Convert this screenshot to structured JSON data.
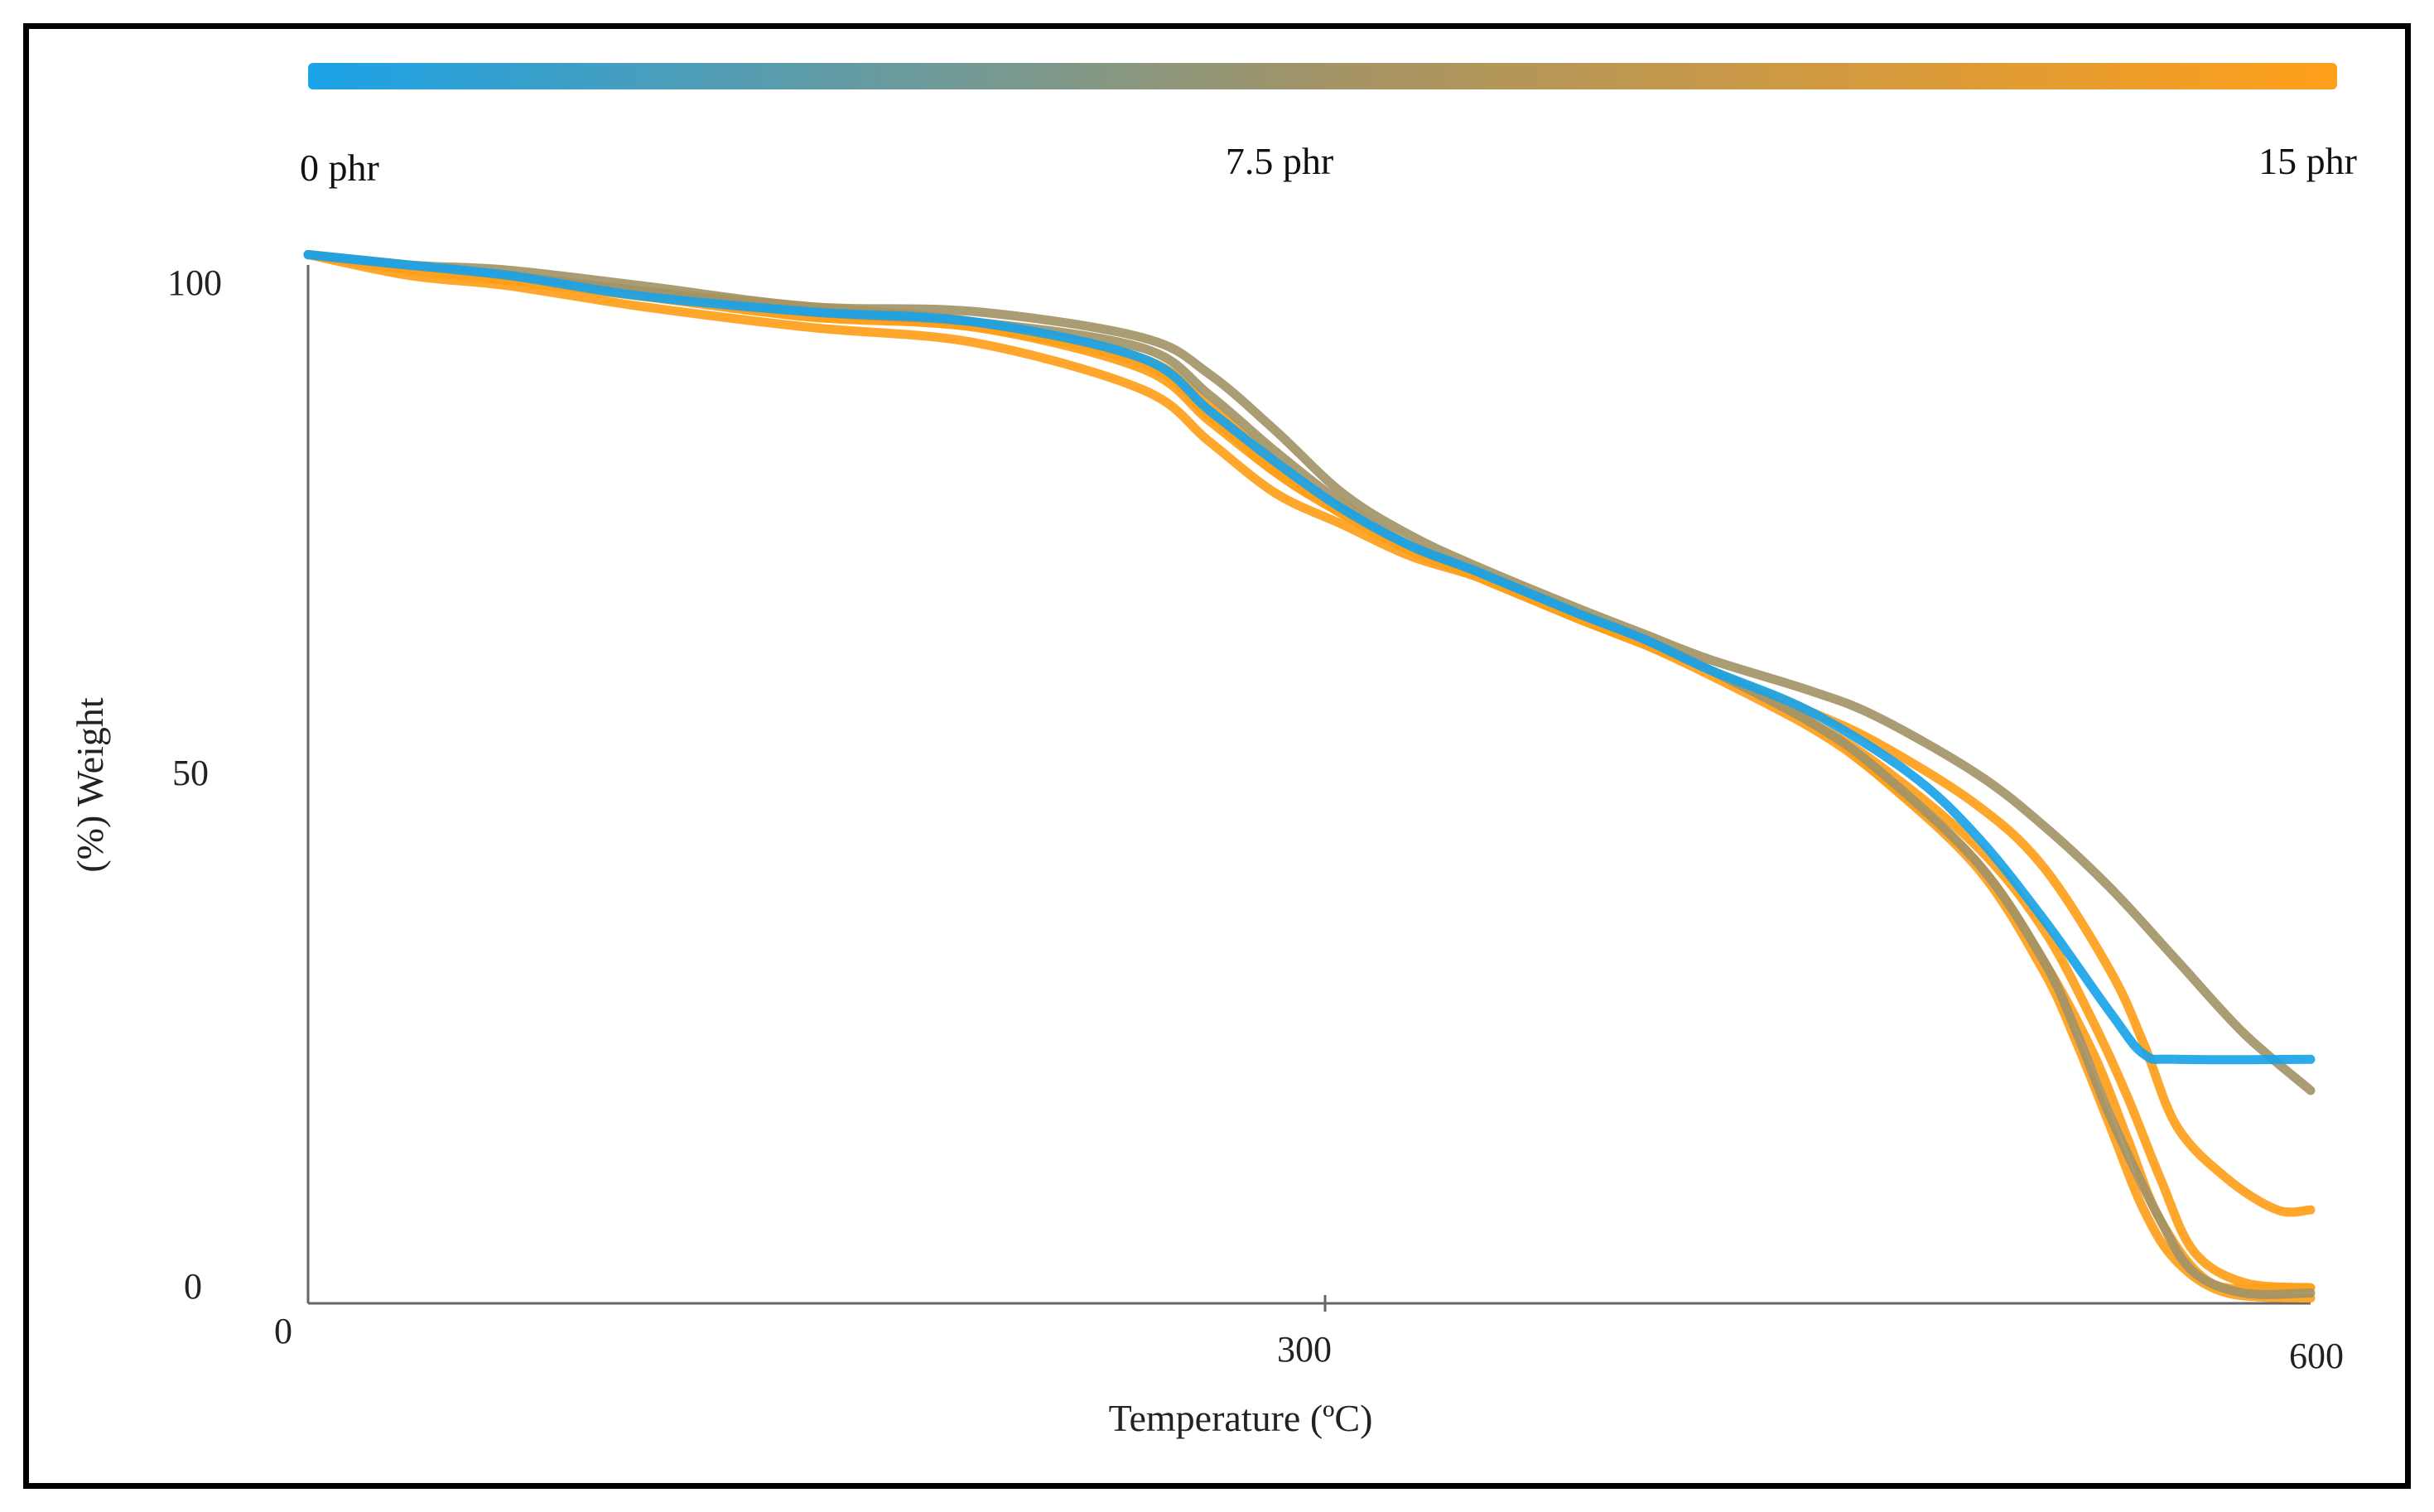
{
  "chart_data": {
    "type": "line",
    "title": "",
    "xlabel": "Temperature (ºC)",
    "ylabel": "(%) Weight",
    "xlim": [
      0,
      600
    ],
    "ylim": [
      0,
      100
    ],
    "x_ticks": [
      "0",
      "300",
      "600"
    ],
    "y_ticks": [
      "0",
      "50",
      "100"
    ],
    "grid": false,
    "color_scale": {
      "labels": [
        "0 phr",
        "7.5 phr",
        "15 phr"
      ],
      "colors": [
        "#1aa3e8",
        "#a39467",
        "#ff9f1a"
      ]
    },
    "series": [
      {
        "color": "#ff9f1a",
        "x": [
          0,
          30,
          60,
          100,
          150,
          200,
          250,
          270,
          290,
          310,
          330,
          350,
          380,
          400,
          420,
          450,
          470,
          500,
          520,
          540,
          550,
          560,
          575,
          590,
          600
        ],
        "y": [
          101,
          99,
          98,
          96,
          94,
          92.5,
          88,
          83,
          78,
          75,
          72,
          70,
          66.5,
          64,
          61,
          57,
          54,
          48,
          42,
          32,
          25,
          17,
          12,
          9,
          9
        ]
      },
      {
        "color": "#ff9f1a",
        "x": [
          0,
          30,
          60,
          100,
          150,
          200,
          250,
          270,
          290,
          310,
          330,
          350,
          380,
          400,
          420,
          450,
          470,
          500,
          520,
          535,
          545,
          555,
          565,
          580,
          600
        ],
        "y": [
          101,
          99.5,
          98.5,
          97,
          95,
          94,
          90,
          85,
          80,
          76,
          72.5,
          70,
          66,
          63.5,
          61,
          56,
          52,
          44,
          36,
          27,
          20,
          12,
          5,
          2,
          1.5
        ]
      },
      {
        "color": "#ff9f1a",
        "x": [
          0,
          30,
          60,
          100,
          150,
          200,
          250,
          270,
          290,
          310,
          330,
          350,
          380,
          400,
          420,
          450,
          470,
          500,
          520,
          530,
          540,
          550,
          560,
          575,
          600
        ],
        "y": [
          101,
          100,
          99,
          97.5,
          96,
          94.5,
          91,
          86.5,
          81,
          76.5,
          73,
          70.5,
          66.5,
          64,
          61,
          56,
          51,
          42,
          32,
          25,
          17,
          9,
          4,
          1,
          0.5
        ]
      },
      {
        "color": "#ff9f1a",
        "x": [
          0,
          30,
          60,
          100,
          150,
          200,
          250,
          270,
          290,
          310,
          330,
          350,
          380,
          400,
          420,
          450,
          470,
          500,
          520,
          535,
          545,
          555,
          570,
          590,
          600
        ],
        "y": [
          101,
          99.5,
          98.5,
          97,
          95,
          94,
          90.5,
          85.5,
          80,
          76,
          72.5,
          70,
          66,
          63.5,
          60.5,
          55.5,
          51,
          42.5,
          33,
          24,
          16,
          8,
          2,
          1.5,
          1.5
        ]
      },
      {
        "color": "#a39467",
        "x": [
          0,
          30,
          60,
          100,
          150,
          200,
          250,
          270,
          290,
          310,
          330,
          350,
          380,
          400,
          420,
          450,
          470,
          500,
          520,
          540,
          560,
          580,
          600
        ],
        "y": [
          101,
          100,
          99.5,
          98,
          96,
          95.5,
          93,
          89.5,
          84,
          78,
          74,
          71,
          67,
          64.5,
          62,
          59,
          56.5,
          51,
          46,
          40,
          33,
          26,
          20.5
        ]
      },
      {
        "color": "#a39467",
        "x": [
          0,
          30,
          60,
          100,
          150,
          200,
          250,
          270,
          290,
          310,
          330,
          350,
          380,
          400,
          420,
          450,
          470,
          500,
          520,
          530,
          540,
          555,
          565,
          580,
          600
        ],
        "y": [
          101,
          100,
          99,
          97.5,
          95.5,
          94.5,
          92,
          87.5,
          82,
          77,
          73,
          70.5,
          66.5,
          64,
          61,
          56,
          51.5,
          42.5,
          33,
          26,
          18,
          8,
          3,
          1,
          1
        ]
      },
      {
        "color": "#1aa3e8",
        "x": [
          0,
          30,
          60,
          100,
          150,
          200,
          250,
          270,
          290,
          310,
          330,
          350,
          380,
          400,
          420,
          450,
          480,
          500,
          520,
          540,
          550,
          560,
          600
        ],
        "y": [
          101,
          100,
          99,
          97,
          95.5,
          94.5,
          91,
          86,
          81,
          76.5,
          73,
          70.5,
          66.5,
          64,
          61,
          57,
          51,
          45,
          37,
          28,
          24,
          23.5,
          23.5
        ]
      }
    ]
  }
}
